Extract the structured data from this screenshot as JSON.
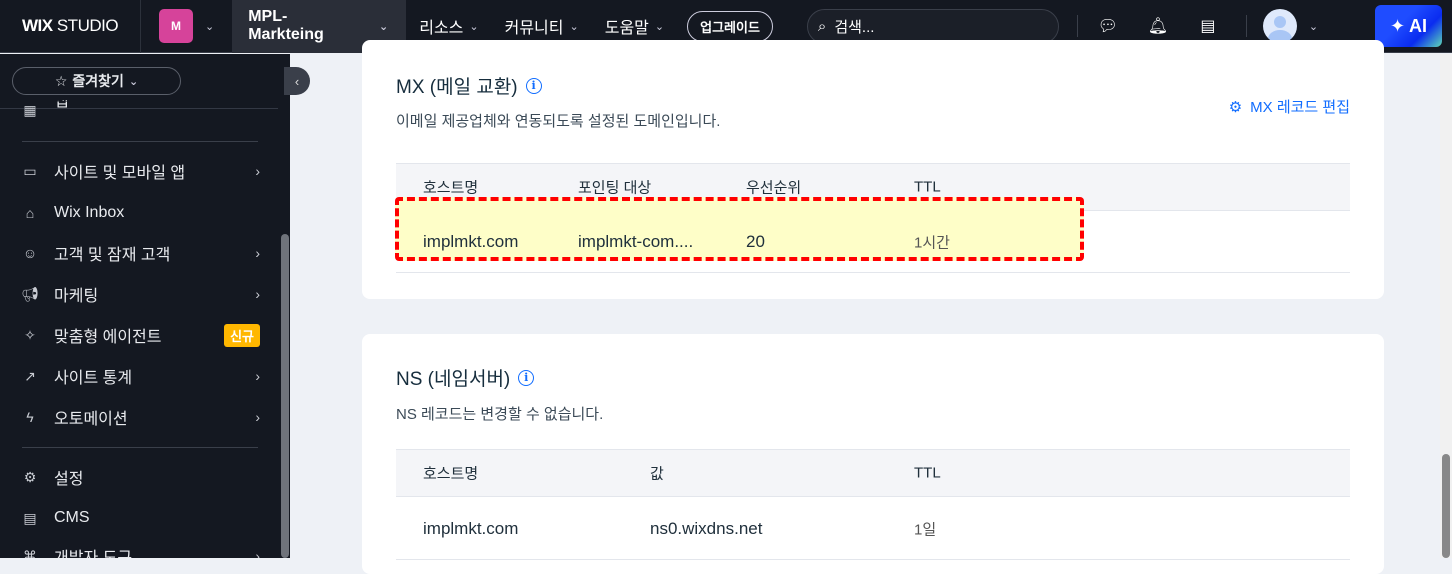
{
  "topbar": {
    "logo_bold": "WIX",
    "logo_light": "STUDIO",
    "workspace_initial": "M",
    "site_name": "MPL-Markteing",
    "nav": [
      "리소스",
      "커뮤니티",
      "도움말"
    ],
    "upgrade": "업그레이드",
    "search_placeholder": "검색...",
    "ai": "AI"
  },
  "sidebar": {
    "favorites": "즐겨찾기",
    "partial_top": "앱",
    "items": [
      {
        "label": "사이트 및 모바일 앱",
        "icon": "devices-icon",
        "arrow": true
      },
      {
        "label": "Wix Inbox",
        "icon": "inbox-icon",
        "arrow": false
      },
      {
        "label": "고객 및 잠재 고객",
        "icon": "contacts-icon",
        "arrow": true
      },
      {
        "label": "마케팅",
        "icon": "megaphone-icon",
        "arrow": true
      },
      {
        "label": "맞춤형 에이전트",
        "icon": "sparkle-icon",
        "badge": "신규"
      },
      {
        "label": "사이트 통계",
        "icon": "chart-icon",
        "arrow": true
      },
      {
        "label": "오토메이션",
        "icon": "bolt-icon",
        "arrow": true
      },
      {
        "label": "설정",
        "icon": "gear-icon",
        "arrow": false
      },
      {
        "label": "CMS",
        "icon": "table-icon",
        "arrow": false
      },
      {
        "label": "개발자 도구",
        "icon": "code-icon",
        "arrow": true
      }
    ]
  },
  "mx": {
    "title": "MX (메일 교환)",
    "desc": "이메일 제공업체와 연동되도록 설정된 도메인입니다.",
    "edit": "MX 레코드 편집",
    "headers": [
      "호스트명",
      "포인팅 대상",
      "우선순위",
      "TTL"
    ],
    "row": [
      "implmkt.com",
      "implmkt-com....",
      "20",
      "1시간"
    ]
  },
  "ns": {
    "title": "NS (네임서버)",
    "desc": "NS 레코드는 변경할 수 없습니다.",
    "headers": [
      "호스트명",
      "값",
      "TTL"
    ],
    "row": [
      "implmkt.com",
      "ns0.wixdns.net",
      "1일"
    ]
  },
  "colors": {
    "accent": "#116dff",
    "highlight_border": "#ff0000",
    "highlight_fill": "#fefec8",
    "badge": "#ffb700"
  }
}
